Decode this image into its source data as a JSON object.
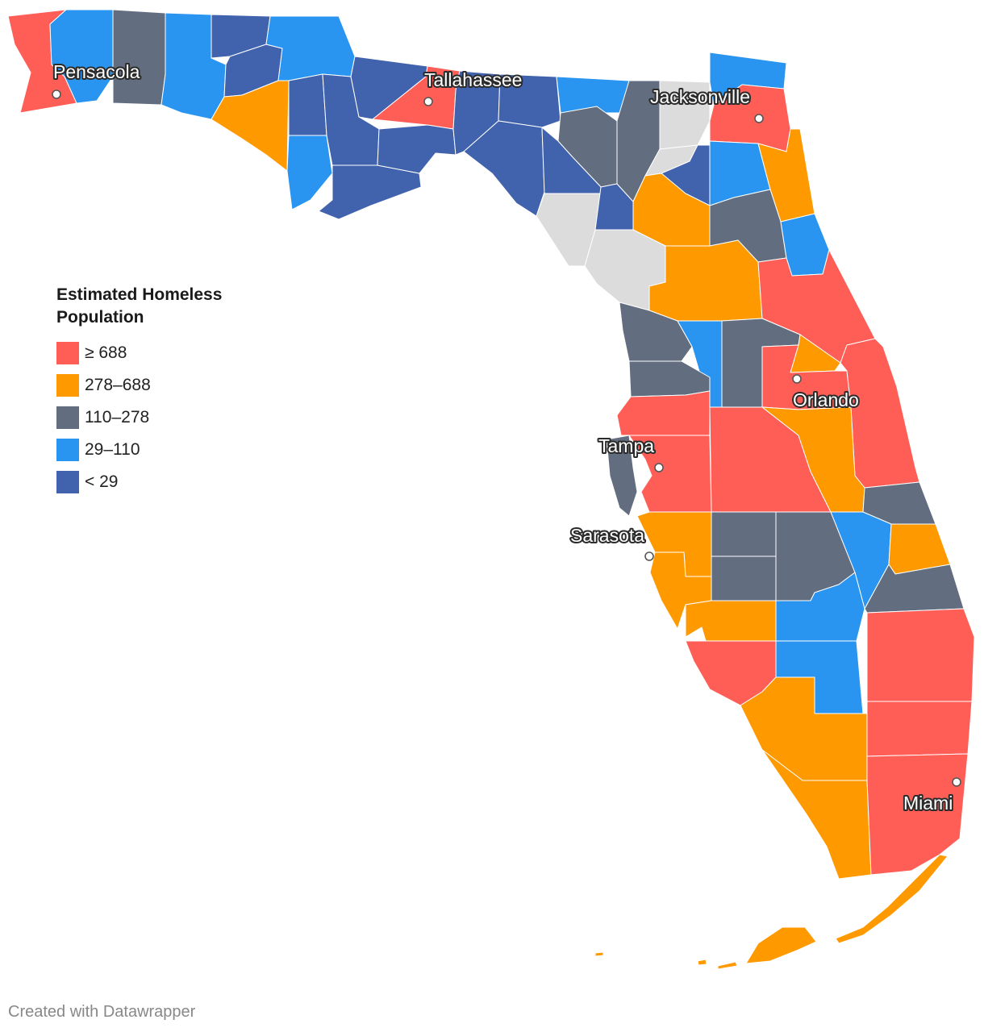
{
  "legend": {
    "title": "Estimated Homeless\nPopulation",
    "items": [
      {
        "label": "≥ 688",
        "color": "#ff5e57"
      },
      {
        "label": "278–688",
        "color": "#ff9900"
      },
      {
        "label": "110–278",
        "color": "#626e7f"
      },
      {
        "label": "29–110",
        "color": "#2a95f0"
      },
      {
        "label": "< 29",
        "color": "#4162ad"
      }
    ],
    "no_data_color": "#dcdcdc"
  },
  "cities": [
    {
      "name": "Pensacola"
    },
    {
      "name": "Tallahassee"
    },
    {
      "name": "Jacksonville"
    },
    {
      "name": "Orlando"
    },
    {
      "name": "Tampa"
    },
    {
      "name": "Sarasota"
    },
    {
      "name": "Miami"
    }
  ],
  "credit": "Created with Datawrapper"
}
